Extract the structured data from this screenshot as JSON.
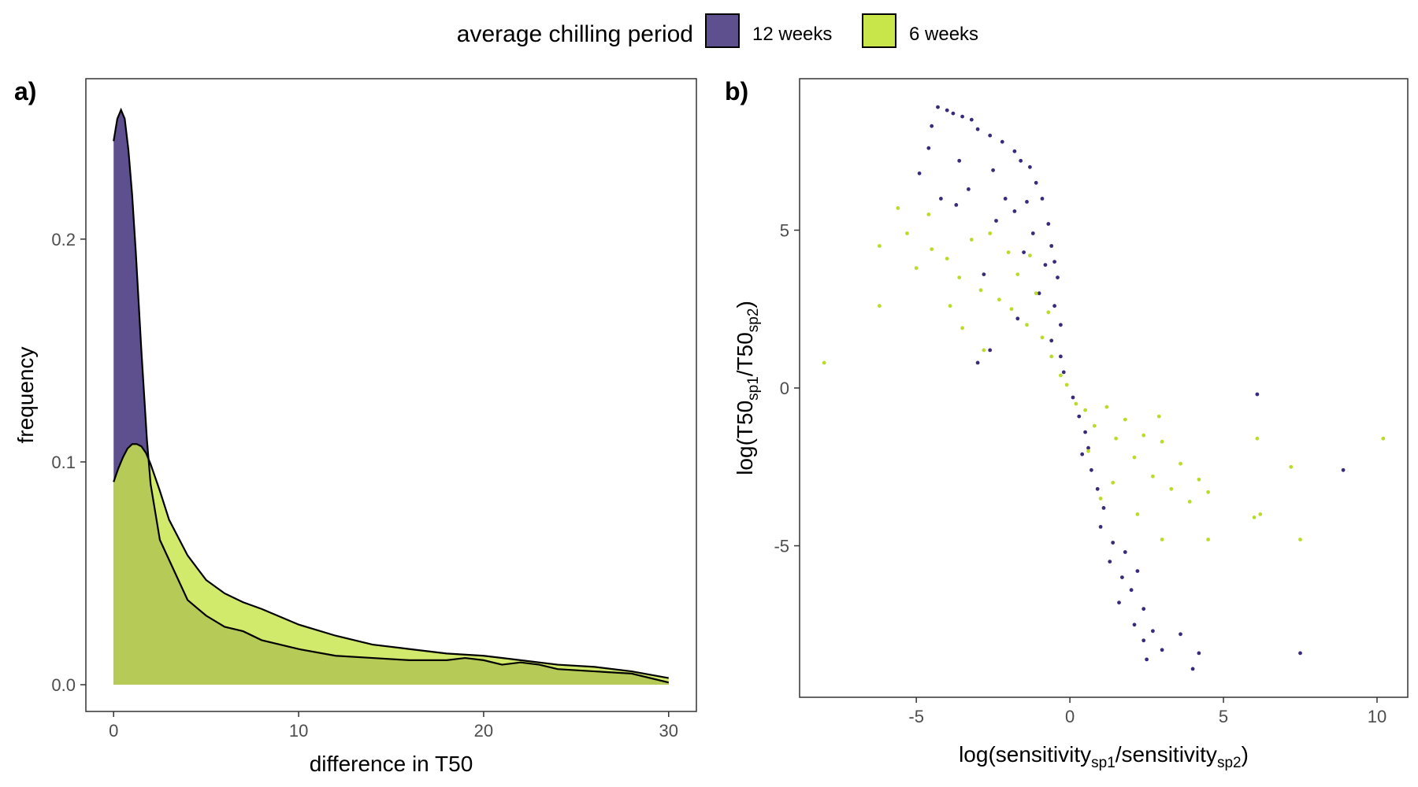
{
  "colors": {
    "weeks12": "#3b2a7a",
    "weeks6": "#b9dc2c",
    "weeks12_fill": "#5e4f8f",
    "weeks6_fill": "#c8e54a",
    "overlap_fill": "#a8c234"
  },
  "legend": {
    "title": "average chilling period",
    "items": [
      {
        "label": "12 weeks",
        "color": "#5e4f8f"
      },
      {
        "label": "6 weeks",
        "color": "#c8e54a"
      }
    ]
  },
  "chart_data": [
    {
      "panel": "a)",
      "type": "area",
      "xlabel": "difference in T50",
      "ylabel": "frequency",
      "xlim": [
        -1.5,
        31.5
      ],
      "ylim": [
        -0.012,
        0.272
      ],
      "xticks": [
        0,
        10,
        20,
        30
      ],
      "yticks": [
        0.0,
        0.1,
        0.2
      ],
      "ytick_labels": [
        "0.0",
        "0.1",
        "0.2"
      ],
      "grid": false,
      "series": [
        {
          "name": "12 weeks",
          "x": [
            0,
            0.2,
            0.4,
            0.6,
            0.8,
            1.0,
            1.2,
            1.5,
            1.8,
            2.0,
            2.5,
            3,
            4,
            5,
            6,
            7,
            8,
            10,
            12,
            14,
            16,
            18,
            19,
            20,
            21,
            22,
            23,
            24,
            26,
            28,
            30
          ],
          "y": [
            0.244,
            0.254,
            0.258,
            0.254,
            0.24,
            0.22,
            0.194,
            0.15,
            0.11,
            0.09,
            0.065,
            0.056,
            0.038,
            0.031,
            0.026,
            0.024,
            0.02,
            0.016,
            0.013,
            0.012,
            0.011,
            0.011,
            0.012,
            0.011,
            0.009,
            0.01,
            0.009,
            0.007,
            0.006,
            0.005,
            0.001
          ]
        },
        {
          "name": "6 weeks",
          "x": [
            0,
            0.25,
            0.5,
            0.75,
            1.0,
            1.25,
            1.5,
            1.75,
            2.0,
            2.5,
            3,
            4,
            5,
            6,
            7,
            8,
            10,
            12,
            14,
            16,
            18,
            20,
            22,
            24,
            26,
            28,
            30
          ],
          "y": [
            0.091,
            0.097,
            0.102,
            0.106,
            0.108,
            0.108,
            0.107,
            0.104,
            0.099,
            0.087,
            0.074,
            0.058,
            0.047,
            0.041,
            0.037,
            0.034,
            0.027,
            0.022,
            0.018,
            0.016,
            0.014,
            0.013,
            0.011,
            0.009,
            0.008,
            0.006,
            0.003
          ]
        }
      ]
    },
    {
      "panel": "b)",
      "type": "scatter",
      "xlabel": "log(sensitivity_sp1 / sensitivity_sp2)",
      "ylabel": "log(T50_sp1 / T50_sp2)",
      "xlim": [
        -8.8,
        11.0
      ],
      "ylim": [
        -9.8,
        9.8
      ],
      "xticks": [
        -5,
        0,
        5,
        10
      ],
      "xtick_labels": [
        "-5",
        "0",
        "5",
        "10"
      ],
      "yticks": [
        -5,
        0,
        5
      ],
      "ytick_labels": [
        "-5",
        "0",
        "5"
      ],
      "grid": false,
      "series": [
        {
          "name": "12 weeks",
          "points": [
            [
              -4.3,
              8.9
            ],
            [
              -4.0,
              8.8
            ],
            [
              -3.8,
              8.7
            ],
            [
              -3.5,
              8.6
            ],
            [
              -3.2,
              8.5
            ],
            [
              -4.5,
              8.3
            ],
            [
              -3.0,
              8.2
            ],
            [
              -2.6,
              8.0
            ],
            [
              -2.2,
              7.8
            ],
            [
              -4.6,
              7.6
            ],
            [
              -1.8,
              7.5
            ],
            [
              -3.6,
              7.2
            ],
            [
              -1.6,
              7.2
            ],
            [
              -1.3,
              7.0
            ],
            [
              -2.5,
              6.9
            ],
            [
              -4.9,
              6.8
            ],
            [
              -1.1,
              6.5
            ],
            [
              -3.3,
              6.3
            ],
            [
              -2.1,
              6.0
            ],
            [
              -4.2,
              6.0
            ],
            [
              -0.9,
              6.0
            ],
            [
              -3.7,
              5.8
            ],
            [
              -1.8,
              5.6
            ],
            [
              -2.4,
              5.3
            ],
            [
              -0.7,
              5.2
            ],
            [
              -1.2,
              4.9
            ],
            [
              -0.6,
              4.5
            ],
            [
              -1.5,
              4.3
            ],
            [
              -0.5,
              4.0
            ],
            [
              -2.8,
              3.6
            ],
            [
              -0.4,
              3.5
            ],
            [
              -1.0,
              3.0
            ],
            [
              -0.5,
              2.6
            ],
            [
              -1.7,
              2.2
            ],
            [
              -0.3,
              2.0
            ],
            [
              -2.6,
              1.2
            ],
            [
              -0.6,
              1.5
            ],
            [
              -3.0,
              0.8
            ],
            [
              -0.3,
              1.0
            ],
            [
              -0.2,
              0.5
            ],
            [
              0.1,
              -0.3
            ],
            [
              0.3,
              -0.9
            ],
            [
              0.5,
              -1.4
            ],
            [
              0.4,
              -2.1
            ],
            [
              0.7,
              -2.6
            ],
            [
              0.9,
              -3.2
            ],
            [
              1.1,
              -3.8
            ],
            [
              1.0,
              -4.4
            ],
            [
              1.4,
              -4.9
            ],
            [
              1.3,
              -5.5
            ],
            [
              1.7,
              -6.0
            ],
            [
              2.0,
              -6.4
            ],
            [
              1.6,
              -6.8
            ],
            [
              2.4,
              -7.0
            ],
            [
              2.1,
              -7.5
            ],
            [
              2.7,
              -7.7
            ],
            [
              3.6,
              -7.8
            ],
            [
              2.4,
              -8.0
            ],
            [
              3.0,
              -8.3
            ],
            [
              4.2,
              -8.4
            ],
            [
              2.5,
              -8.6
            ],
            [
              4.0,
              -8.9
            ],
            [
              6.1,
              -0.2
            ],
            [
              8.9,
              -2.6
            ],
            [
              7.5,
              -8.4
            ],
            [
              1.8,
              -5.2
            ],
            [
              0.6,
              -1.9
            ],
            [
              -0.8,
              3.9
            ],
            [
              -1.4,
              5.9
            ],
            [
              2.2,
              -5.8
            ]
          ]
        },
        {
          "name": "6 weeks",
          "points": [
            [
              -8.0,
              0.8
            ],
            [
              -6.2,
              4.5
            ],
            [
              -6.2,
              2.6
            ],
            [
              -5.6,
              5.7
            ],
            [
              -5.3,
              4.9
            ],
            [
              -5.0,
              3.8
            ],
            [
              -4.5,
              4.4
            ],
            [
              -4.0,
              4.1
            ],
            [
              -3.6,
              3.5
            ],
            [
              -3.2,
              4.7
            ],
            [
              -2.9,
              3.1
            ],
            [
              -2.6,
              4.9
            ],
            [
              -2.3,
              2.8
            ],
            [
              -2.0,
              4.3
            ],
            [
              -1.7,
              3.6
            ],
            [
              -1.4,
              2.0
            ],
            [
              -1.1,
              3.0
            ],
            [
              -0.9,
              1.6
            ],
            [
              -2.8,
              1.2
            ],
            [
              -3.9,
              2.6
            ],
            [
              -0.6,
              1.0
            ],
            [
              -0.3,
              0.4
            ],
            [
              -0.1,
              0.1
            ],
            [
              0.2,
              -0.5
            ],
            [
              0.5,
              -0.7
            ],
            [
              0.8,
              -1.2
            ],
            [
              1.2,
              -0.6
            ],
            [
              1.5,
              -1.6
            ],
            [
              1.8,
              -1.0
            ],
            [
              2.1,
              -2.2
            ],
            [
              2.4,
              -1.5
            ],
            [
              2.7,
              -2.8
            ],
            [
              3.0,
              -1.7
            ],
            [
              3.3,
              -3.2
            ],
            [
              3.6,
              -2.4
            ],
            [
              3.9,
              -3.6
            ],
            [
              4.2,
              -2.9
            ],
            [
              4.5,
              -3.3
            ],
            [
              4.5,
              -4.8
            ],
            [
              3.0,
              -4.8
            ],
            [
              2.2,
              -4.0
            ],
            [
              1.4,
              -3.0
            ],
            [
              0.6,
              -2.0
            ],
            [
              -1.9,
              2.5
            ],
            [
              -1.3,
              4.2
            ],
            [
              -0.7,
              2.4
            ],
            [
              6.0,
              -4.1
            ],
            [
              6.2,
              -4.0
            ],
            [
              6.1,
              -1.6
            ],
            [
              7.2,
              -2.5
            ],
            [
              7.5,
              -4.8
            ],
            [
              10.2,
              -1.6
            ],
            [
              1.0,
              -3.5
            ],
            [
              2.9,
              -0.9
            ],
            [
              -4.6,
              5.5
            ],
            [
              -3.5,
              1.9
            ]
          ]
        }
      ]
    }
  ]
}
